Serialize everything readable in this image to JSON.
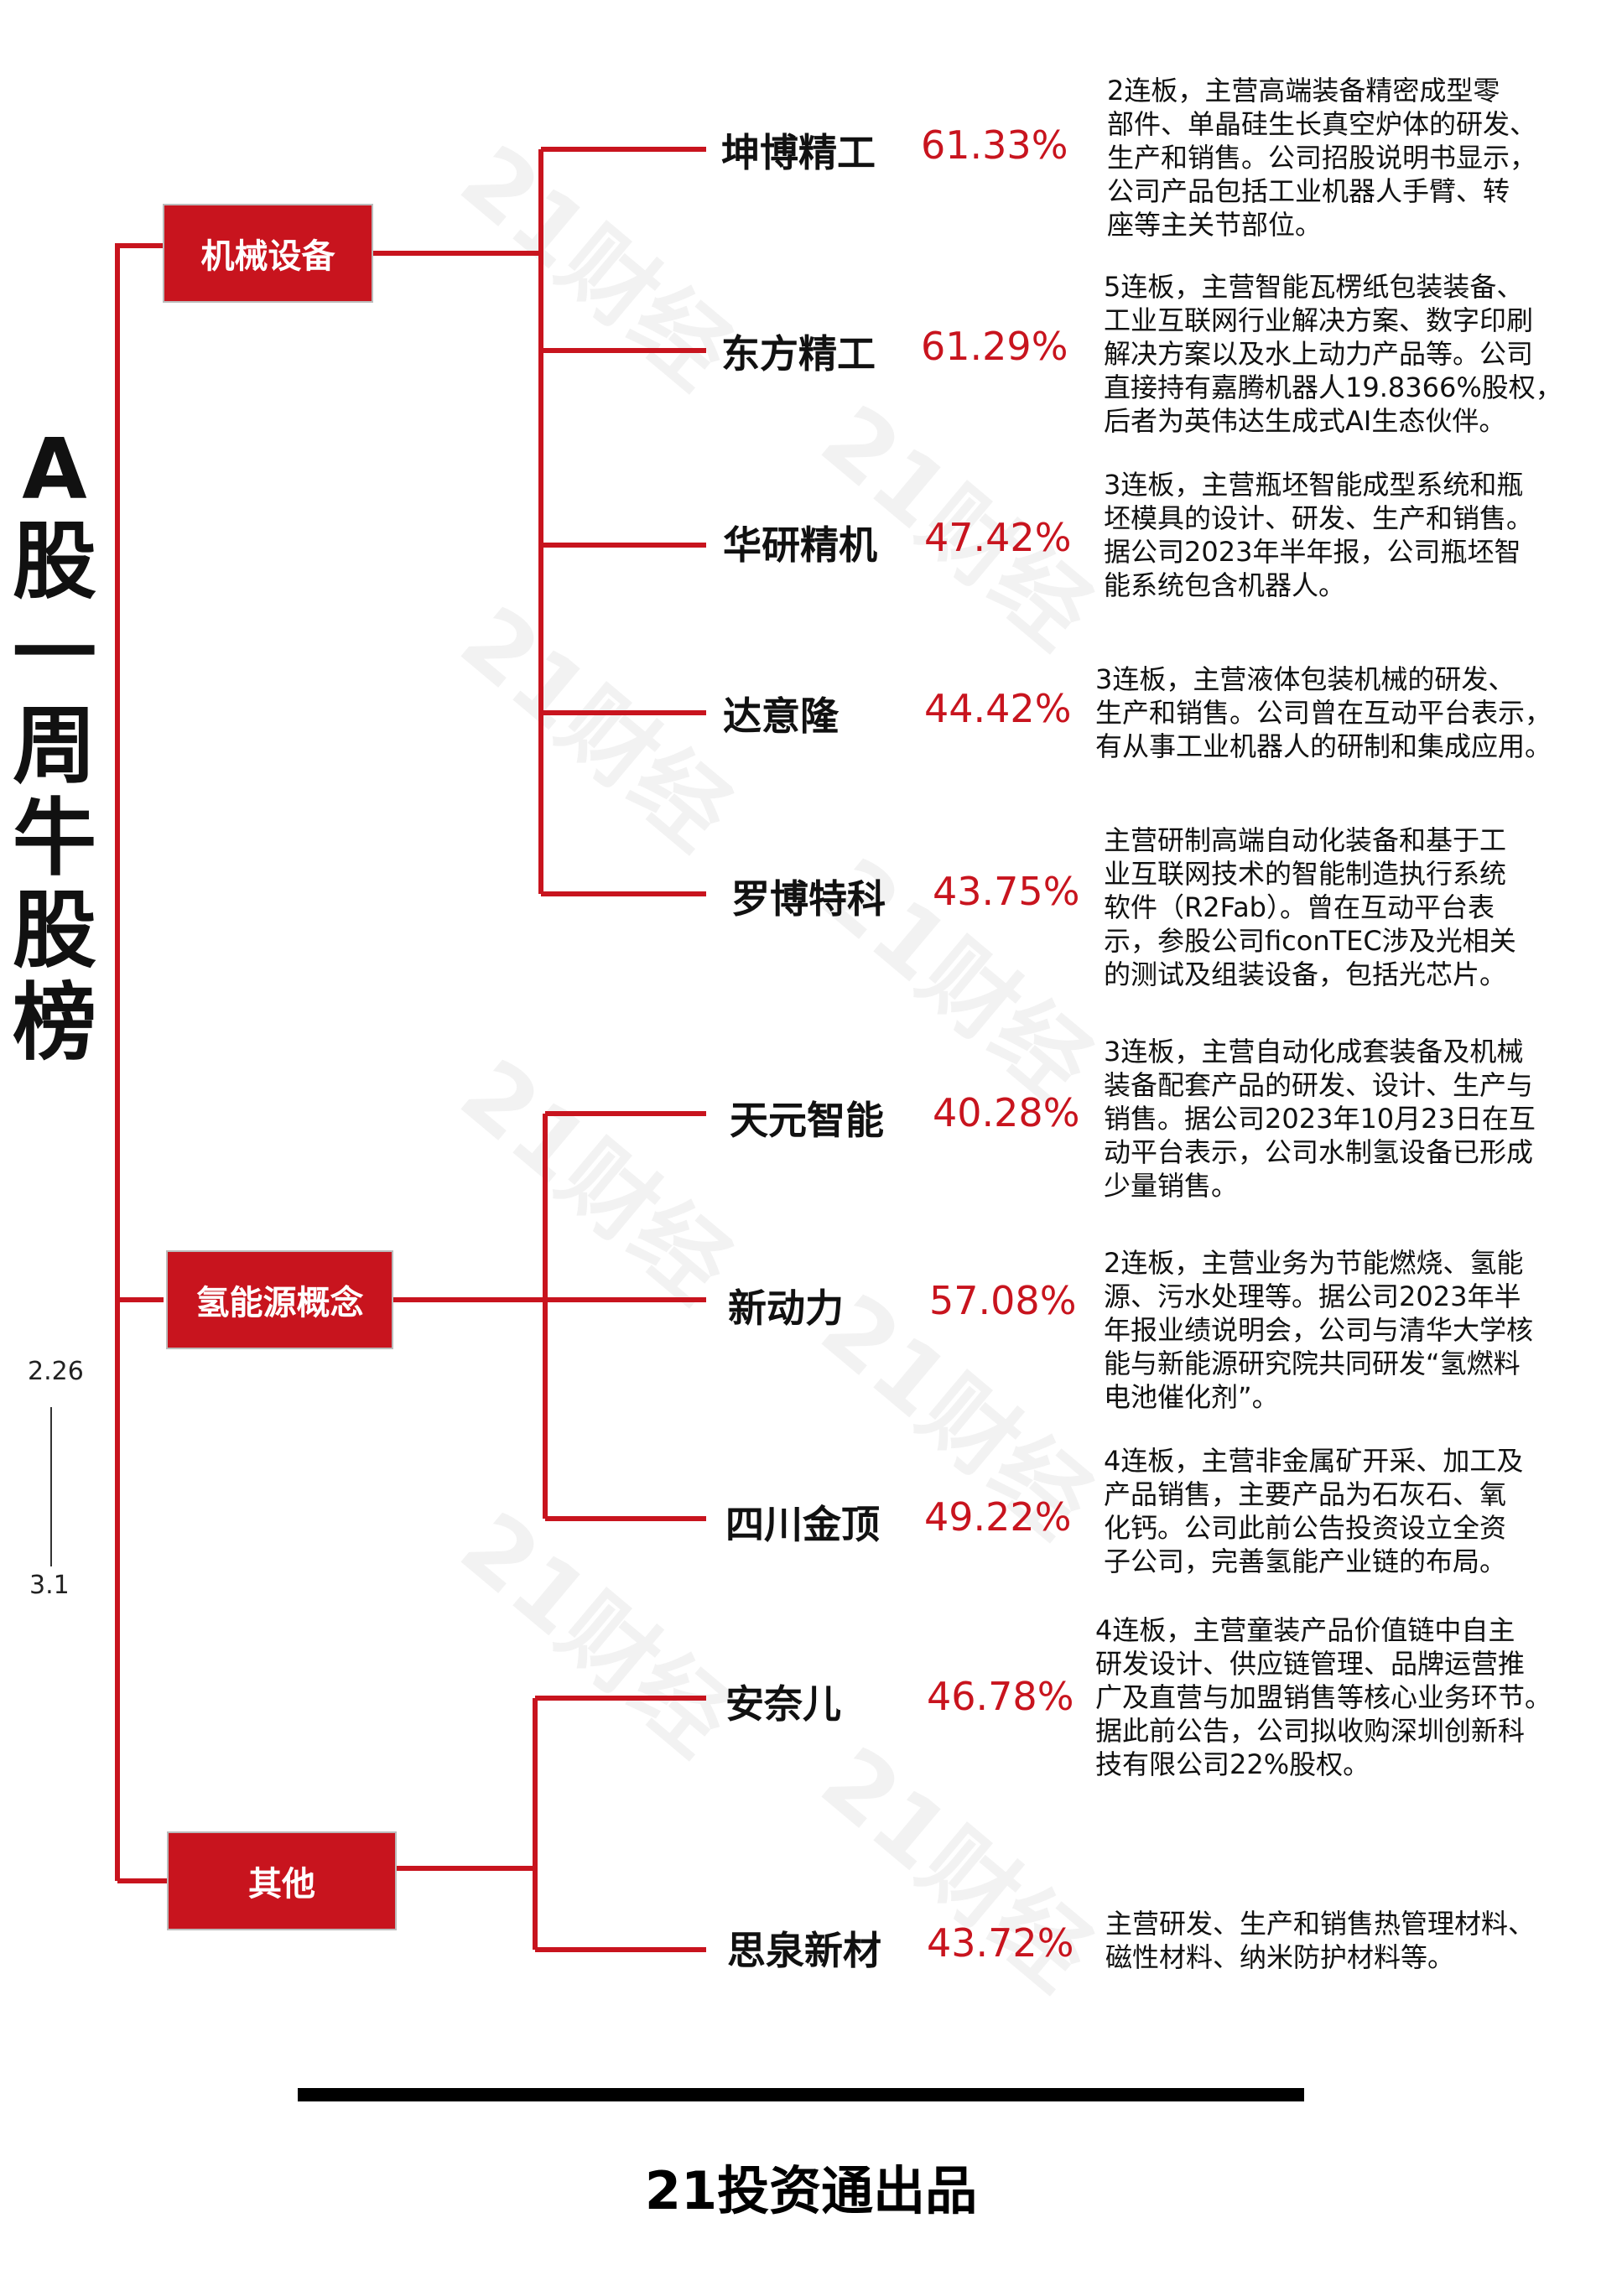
{
  "title_chars": [
    "A",
    "股",
    "一",
    "周",
    "牛",
    "股",
    "榜"
  ],
  "period": {
    "start": "2.26",
    "end": "3.1"
  },
  "colors": {
    "accent": "#c8141e",
    "text": "#111111",
    "box_border": "#bbbbbb"
  },
  "watermark": "21财经",
  "categories": [
    {
      "label": "机械设备"
    },
    {
      "label": "氢能源概念"
    },
    {
      "label": "其他"
    }
  ],
  "stocks": [
    {
      "name": "坤博精工",
      "pct": "61.33%",
      "desc": "2连板，主营高端装备精密成型零\n部件、单晶硅生长真空炉体的研发、\n生产和销售。公司招股说明书显示，\n公司产品包括工业机器人手臂、转\n座等主关节部位。"
    },
    {
      "name": "东方精工",
      "pct": "61.29%",
      "desc": "5连板，主营智能瓦楞纸包装装备、\n工业互联网行业解决方案、数字印刷\n解决方案以及水上动力产品等。公司\n直接持有嘉腾机器人19.8366%股权，\n后者为英伟达生成式AI生态伙伴。"
    },
    {
      "name": "华研精机",
      "pct": "47.42%",
      "desc": "3连板，主营瓶坯智能成型系统和瓶\n坯模具的设计、研发、生产和销售。\n据公司2023年半年报，公司瓶坯智\n能系统包含机器人。"
    },
    {
      "name": "达意隆",
      "pct": "44.42%",
      "desc": "3连板，主营液体包装机械的研发、\n生产和销售。公司曾在互动平台表示，\n有从事工业机器人的研制和集成应用。"
    },
    {
      "name": "罗博特科",
      "pct": "43.75%",
      "desc": "主营研制高端自动化装备和基于工\n业互联网技术的智能制造执行系统\n软件（R2Fab）。曾在互动平台表\n示，参股公司ficonTEC涉及光相关\n的测试及组装设备，包括光芯片。"
    },
    {
      "name": "天元智能",
      "pct": "40.28%",
      "desc": "3连板，主营自动化成套装备及机械\n装备配套产品的研发、设计、生产与\n销售。据公司2023年10月23日在互\n动平台表示，公司水制氢设备已形成\n少量销售。"
    },
    {
      "name": "新动力",
      "pct": "57.08%",
      "desc": "2连板，主营业务为节能燃烧、氢能\n源、污水处理等。据公司2023年半\n年报业绩说明会，公司与清华大学核\n能与新能源研究院共同研发“氢燃料\n电池催化剂”。"
    },
    {
      "name": "四川金顶",
      "pct": "49.22%",
      "desc": "4连板，主营非金属矿开采、加工及\n产品销售，主要产品为石灰石、氧\n化钙。公司此前公告投资设立全资\n子公司，完善氢能产业链的布局。"
    },
    {
      "name": "安奈儿",
      "pct": "46.78%",
      "desc": "4连板，主营童装产品价值链中自主\n研发设计、供应链管理、品牌运营推\n广及直营与加盟销售等核心业务环节。\n据此前公告，公司拟收购深圳创新科\n技有限公司22%股权。"
    },
    {
      "name": "思泉新材",
      "pct": "43.72%",
      "desc": "主营研发、生产和销售热管理材料、\n磁性材料、纳米防护材料等。"
    }
  ],
  "footer": {
    "text": "21投资通出品"
  }
}
